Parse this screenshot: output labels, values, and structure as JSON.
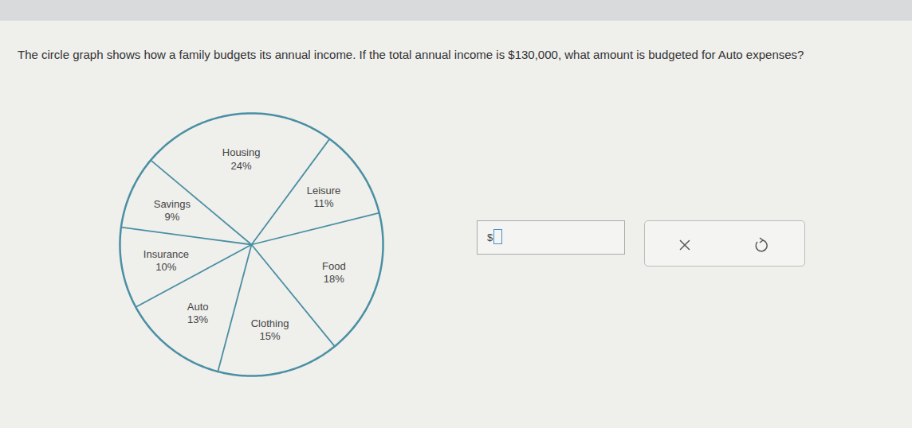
{
  "question": "The circle graph shows how a family budgets its annual income. If the total annual income is $130,000, what amount is budgeted for Auto expenses?",
  "answer_prefix": "$",
  "chart_data": {
    "type": "pie",
    "categories": [
      "Housing",
      "Leisure",
      "Food",
      "Clothing",
      "Auto",
      "Insurance",
      "Savings"
    ],
    "values": [
      24,
      11,
      18,
      15,
      13,
      10,
      9
    ],
    "value_labels": [
      "24%",
      "11%",
      "18%",
      "15%",
      "13%",
      "10%",
      "9%"
    ],
    "data_labels": true,
    "color": "#4a8fa3"
  }
}
